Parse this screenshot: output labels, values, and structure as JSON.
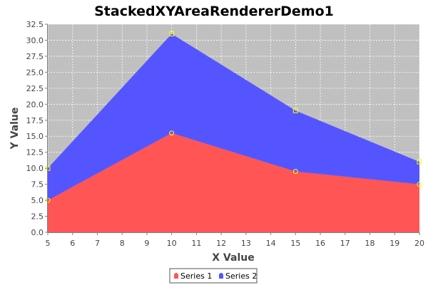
{
  "chart_data": {
    "type": "area",
    "stacked": true,
    "title": "StackedXYAreaRendererDemo1",
    "xlabel": "X Value",
    "ylabel": "Y Value",
    "x": [
      5,
      10,
      15,
      20
    ],
    "series": [
      {
        "name": "Series 1",
        "values": [
          5.0,
          15.5,
          9.5,
          7.5
        ],
        "color": "#ff5555",
        "marker": "circle"
      },
      {
        "name": "Series 2",
        "values": [
          5.0,
          15.5,
          9.5,
          3.5
        ],
        "color": "#5555ff",
        "marker": "square"
      }
    ],
    "xlim": [
      5,
      20
    ],
    "ylim": [
      0,
      32.5
    ],
    "x_ticks": [
      "5",
      "6",
      "7",
      "8",
      "9",
      "10",
      "11",
      "12",
      "13",
      "14",
      "15",
      "16",
      "17",
      "18",
      "19",
      "20"
    ],
    "y_ticks": [
      "0.0",
      "2.5",
      "5.0",
      "7.5",
      "10.0",
      "12.5",
      "15.0",
      "17.5",
      "20.0",
      "22.5",
      "25.0",
      "27.5",
      "30.0",
      "32.5"
    ],
    "grid": true,
    "legend_position": "bottom",
    "colors": {
      "plot_background": "#c0c0c0",
      "gridline": "#ffffff",
      "marker_outline": "#ffff00"
    }
  }
}
